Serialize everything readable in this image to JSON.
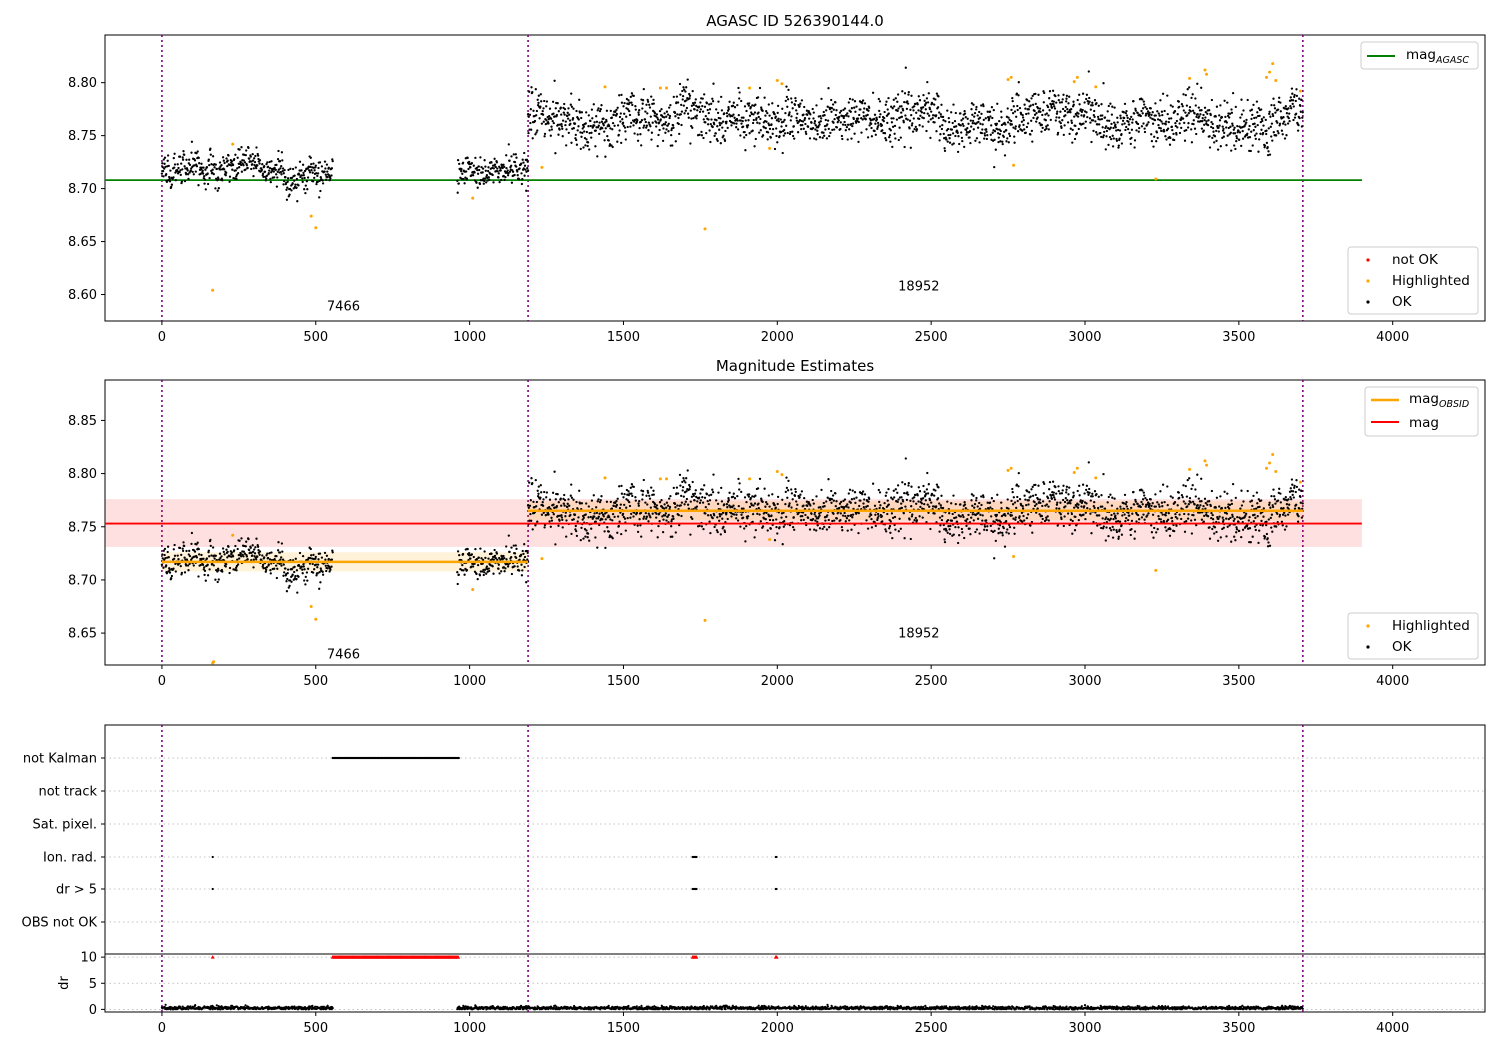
{
  "figure": {
    "title_top": "AGASC ID 526390144.0",
    "title_middle": "Magnitude Estimates"
  },
  "colors": {
    "ok": "#000000",
    "highlighted": "#ffa500",
    "not_ok": "#ff0000",
    "mag_agasc": "#008000",
    "mag_obsid": "#ffa500",
    "mag": "#ff0000",
    "obsid_boundary": "#800080"
  },
  "chart_data": [
    {
      "type": "scatter",
      "title": "AGASC ID 526390144.0",
      "xlim": [
        -185,
        4300
      ],
      "ylim": [
        8.575,
        8.845
      ],
      "x_ticks": [
        0,
        500,
        1000,
        1500,
        2000,
        2500,
        3000,
        3500,
        4000
      ],
      "y_ticks": [
        8.6,
        8.65,
        8.7,
        8.75,
        8.8
      ],
      "y_tick_labels": [
        "8.60",
        "8.65",
        "8.70",
        "8.75",
        "8.80"
      ],
      "obsid_boundaries": [
        0,
        1190,
        3708
      ],
      "obsid_labels": [
        {
          "text": "7466",
          "x": 590,
          "y": 8.585
        },
        {
          "text": "18952",
          "x": 2460,
          "y": 8.604
        }
      ],
      "lines": [
        {
          "name": "mag_AGASC",
          "y": 8.708,
          "x_range": [
            -185,
            3900
          ],
          "color": "#008000"
        }
      ],
      "legend_lines": [
        "mag",
        "AGASC"
      ],
      "legend_points": [
        "not OK",
        "Highlighted",
        "OK"
      ],
      "legend_line_position": "upper right",
      "legend_points_position": "lower right",
      "segments_ok": [
        {
          "x": [
            0,
            555
          ],
          "mean": 8.718,
          "spread": 0.007
        },
        {
          "x": [
            960,
            1190
          ],
          "mean": 8.716,
          "spread": 0.008
        },
        {
          "x": [
            1190,
            3708
          ],
          "mean": 8.765,
          "spread": 0.011
        }
      ],
      "highlighted": [
        [
          165,
          8.604
        ],
        [
          230,
          8.742
        ],
        [
          485,
          8.674
        ],
        [
          500,
          8.663
        ],
        [
          1010,
          8.691
        ],
        [
          1235,
          8.72
        ],
        [
          1440,
          8.796
        ],
        [
          1620,
          8.795
        ],
        [
          1640,
          8.795
        ],
        [
          1765,
          8.662
        ],
        [
          1910,
          8.795
        ],
        [
          1975,
          8.738
        ],
        [
          2000,
          8.802
        ],
        [
          2015,
          8.799
        ],
        [
          2750,
          8.803
        ],
        [
          2760,
          8.805
        ],
        [
          2768,
          8.722
        ],
        [
          2965,
          8.801
        ],
        [
          2975,
          8.805
        ],
        [
          3035,
          8.796
        ],
        [
          3230,
          8.709
        ],
        [
          3340,
          8.804
        ],
        [
          3390,
          8.812
        ],
        [
          3395,
          8.808
        ],
        [
          3590,
          8.805
        ],
        [
          3600,
          8.81
        ],
        [
          3610,
          8.818
        ],
        [
          3620,
          8.802
        ],
        [
          3700,
          8.792
        ]
      ]
    },
    {
      "type": "scatter",
      "title": "Magnitude Estimates",
      "xlim": [
        -185,
        4300
      ],
      "ylim": [
        8.62,
        8.888
      ],
      "x_ticks": [
        0,
        500,
        1000,
        1500,
        2000,
        2500,
        3000,
        3500,
        4000
      ],
      "y_ticks": [
        8.65,
        8.7,
        8.75,
        8.8,
        8.85
      ],
      "y_tick_labels": [
        "8.65",
        "8.70",
        "8.75",
        "8.80",
        "8.85"
      ],
      "obsid_boundaries": [
        0,
        1190,
        3708
      ],
      "obsid_labels": [
        {
          "text": "7466",
          "x": 590,
          "y": 8.626
        },
        {
          "text": "18952",
          "x": 2460,
          "y": 8.646
        }
      ],
      "lines": [
        {
          "name": "mag_OBSID",
          "segments": [
            {
              "x": [
                0,
                1190
              ],
              "y": 8.717,
              "band": [
                8.708,
                8.726
              ]
            },
            {
              "x": [
                1190,
                3708
              ],
              "y": 8.765,
              "band": [
                8.756,
                8.774
              ]
            }
          ],
          "color": "#ffa500"
        },
        {
          "name": "mag",
          "y": 8.753,
          "band": [
            8.731,
            8.776
          ],
          "x_range": [
            -185,
            3900
          ],
          "color": "#ff0000"
        }
      ],
      "legend_lines": [
        "mag",
        "OBSID",
        "mag"
      ],
      "legend_points": [
        "Highlighted",
        "OK"
      ],
      "legend_line_position": "upper right",
      "legend_points_position": "lower right",
      "highlighted": [
        [
          165,
          8.622
        ],
        [
          168,
          8.623
        ],
        [
          230,
          8.742
        ],
        [
          485,
          8.675
        ],
        [
          500,
          8.663
        ],
        [
          1010,
          8.691
        ],
        [
          1235,
          8.72
        ],
        [
          1440,
          8.796
        ],
        [
          1620,
          8.795
        ],
        [
          1640,
          8.795
        ],
        [
          1765,
          8.662
        ],
        [
          1910,
          8.795
        ],
        [
          1975,
          8.738
        ],
        [
          2000,
          8.802
        ],
        [
          2015,
          8.799
        ],
        [
          2750,
          8.803
        ],
        [
          2760,
          8.805
        ],
        [
          2768,
          8.722
        ],
        [
          2965,
          8.801
        ],
        [
          2975,
          8.805
        ],
        [
          3035,
          8.796
        ],
        [
          3230,
          8.709
        ],
        [
          3340,
          8.804
        ],
        [
          3390,
          8.812
        ],
        [
          3395,
          8.808
        ],
        [
          3590,
          8.805
        ],
        [
          3600,
          8.81
        ],
        [
          3610,
          8.818
        ],
        [
          3620,
          8.802
        ],
        [
          3700,
          8.792
        ]
      ]
    },
    {
      "type": "scatter",
      "title": "",
      "xlim": [
        -185,
        4300
      ],
      "flag_rows": [
        "not Kalman",
        "not track",
        "Sat. pixel.",
        "Ion. rad.",
        "dr > 5",
        "OBS not OK"
      ],
      "flag_points": {
        "not Kalman": [
          [
            555,
            965
          ]
        ],
        "Ion. rad.": [
          [
            165,
            165
          ],
          [
            1725,
            1738
          ],
          [
            1995,
            1998
          ]
        ],
        "dr > 5": [
          [
            165,
            165
          ],
          [
            1725,
            1738
          ],
          [
            1995,
            1998
          ]
        ]
      },
      "dr_ylabel": "dr",
      "dr_ylim": [
        -0.5,
        10.6
      ],
      "dr_y_ticks": [
        0,
        5,
        10
      ],
      "dr_y_tick_labels": [
        "0",
        "5",
        "10"
      ],
      "dr_red_ranges": [
        [
          165,
          165
        ],
        [
          555,
          965
        ],
        [
          1725,
          1738
        ],
        [
          1995,
          1998
        ]
      ],
      "dr_black_ranges": [
        [
          0,
          555
        ],
        [
          960,
          3708
        ]
      ],
      "x_ticks": [
        0,
        500,
        1000,
        1500,
        2000,
        2500,
        3000,
        3500,
        4000
      ],
      "obsid_boundaries": [
        0,
        1190,
        3708
      ]
    }
  ]
}
